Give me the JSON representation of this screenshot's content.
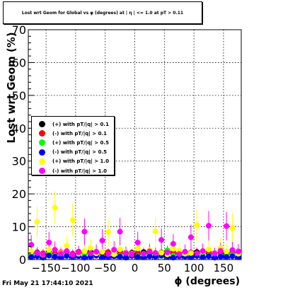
{
  "title": "Lost wrt Geom for Global vs φ (degrees) at | η | <= 1.0 at pT > 0.11",
  "timestamp": "Fri May 21 17:44:10 2021",
  "chart_data": {
    "type": "scatter",
    "title": "Lost wrt Geom for Global vs φ (degrees) at | η | <= 1.0 at pT > 0.11",
    "xlabel": "ϕ (degrees)",
    "ylabel": "Lost wrt Geom (%)",
    "xlim": [
      -180,
      180
    ],
    "ylim": [
      0,
      70
    ],
    "xticks": [
      -150,
      -100,
      -50,
      0,
      50,
      100,
      150
    ],
    "xtick_labels": [
      "−150",
      "−100",
      "−50",
      "0",
      "50",
      "100",
      "150"
    ],
    "yticks": [
      0,
      10,
      20,
      30,
      40,
      50,
      60,
      70
    ],
    "grid": true,
    "legend_position": "middle-left",
    "series": [
      {
        "name": "(+) with pT/|q| > 0.1",
        "color": "#000000",
        "x": [
          -175,
          -165,
          -155,
          -145,
          -135,
          -125,
          -115,
          -105,
          -95,
          -85,
          -75,
          -65,
          -55,
          -45,
          -35,
          -25,
          -15,
          -5,
          5,
          15,
          25,
          35,
          45,
          55,
          65,
          75,
          85,
          95,
          105,
          115,
          125,
          135,
          145,
          155,
          165,
          175
        ],
        "y": [
          2.0,
          2.2,
          1.5,
          2.5,
          1.8,
          2.0,
          2.3,
          1.6,
          1.9,
          2.1,
          2.4,
          1.7,
          2.0,
          2.2,
          1.8,
          2.5,
          1.9,
          2.1,
          1.6,
          2.3,
          2.0,
          1.8,
          2.2,
          2.4,
          1.7,
          2.0,
          2.1,
          1.9,
          2.3,
          2.5,
          1.8,
          2.0,
          2.2,
          1.6,
          2.1,
          2.0
        ],
        "err": [
          0.6,
          0.6,
          0.5,
          0.7,
          0.5,
          0.6,
          0.6,
          0.5,
          0.6,
          0.6,
          0.7,
          0.5,
          0.6,
          0.6,
          0.5,
          0.7,
          0.6,
          0.6,
          0.5,
          0.6,
          0.6,
          0.5,
          0.6,
          0.7,
          0.5,
          0.6,
          0.6,
          0.6,
          0.6,
          0.7,
          0.5,
          0.6,
          0.6,
          0.5,
          0.6,
          0.6
        ]
      },
      {
        "name": "(-) with pT/|q| > 0.1",
        "color": "#ff0000",
        "x": [
          -175,
          -165,
          -155,
          -145,
          -135,
          -125,
          -115,
          -105,
          -95,
          -85,
          -75,
          -65,
          -55,
          -45,
          -35,
          -25,
          -15,
          -5,
          5,
          15,
          25,
          35,
          45,
          55,
          65,
          75,
          85,
          95,
          105,
          115,
          125,
          135,
          145,
          155,
          165,
          175
        ],
        "y": [
          1.8,
          2.1,
          1.9,
          2.3,
          1.6,
          2.2,
          2.0,
          1.8,
          2.4,
          2.0,
          1.7,
          2.1,
          1.9,
          2.3,
          2.0,
          1.8,
          2.2,
          1.9,
          2.1,
          1.7,
          2.4,
          2.0,
          1.8,
          2.1,
          2.3,
          1.9,
          2.0,
          2.2,
          1.8,
          2.0,
          2.3,
          1.9,
          2.1,
          2.0,
          1.8,
          2.2
        ],
        "err": [
          0.5,
          0.6,
          0.6,
          0.6,
          0.5,
          0.6,
          0.6,
          0.5,
          0.7,
          0.6,
          0.5,
          0.6,
          0.6,
          0.6,
          0.6,
          0.5,
          0.6,
          0.6,
          0.6,
          0.5,
          0.7,
          0.6,
          0.5,
          0.6,
          0.6,
          0.6,
          0.6,
          0.6,
          0.5,
          0.6,
          0.6,
          0.6,
          0.6,
          0.6,
          0.5,
          0.6
        ]
      },
      {
        "name": "(+) with pT/|q| > 0.5",
        "color": "#00ff00",
        "x": [
          -175,
          -165,
          -155,
          -145,
          -135,
          -125,
          -115,
          -105,
          -95,
          -85,
          -75,
          -65,
          -55,
          -45,
          -35,
          -25,
          -15,
          -5,
          5,
          15,
          25,
          35,
          45,
          55,
          65,
          75,
          85,
          95,
          105,
          115,
          125,
          135,
          145,
          155,
          165,
          175
        ],
        "y": [
          1.2,
          1.5,
          0.9,
          1.8,
          1.1,
          1.4,
          1.6,
          1.0,
          1.3,
          1.7,
          1.2,
          1.5,
          0.8,
          1.6,
          1.9,
          1.1,
          1.4,
          1.2,
          1.0,
          1.7,
          1.3,
          1.5,
          1.1,
          2.8,
          1.2,
          1.6,
          1.4,
          0.9,
          1.3,
          1.8,
          1.2,
          1.5,
          1.0,
          1.4,
          1.6,
          1.2
        ],
        "err": [
          0.6,
          0.6,
          0.5,
          0.7,
          0.5,
          0.6,
          0.6,
          0.5,
          0.6,
          0.6,
          0.5,
          0.6,
          0.5,
          0.6,
          0.7,
          0.5,
          0.6,
          0.5,
          0.5,
          0.6,
          0.6,
          0.6,
          0.5,
          0.8,
          0.5,
          0.6,
          0.6,
          0.5,
          0.6,
          0.7,
          0.5,
          0.6,
          0.5,
          0.6,
          0.6,
          0.5
        ]
      },
      {
        "name": "(-) with pT/|q| > 0.5",
        "color": "#0000ff",
        "x": [
          -175,
          -165,
          -155,
          -145,
          -135,
          -125,
          -115,
          -105,
          -95,
          -85,
          -75,
          -65,
          -55,
          -45,
          -35,
          -25,
          -15,
          -5,
          5,
          15,
          25,
          35,
          45,
          55,
          65,
          75,
          85,
          95,
          105,
          115,
          125,
          135,
          145,
          155,
          165,
          175
        ],
        "y": [
          0.8,
          1.0,
          0.6,
          1.2,
          0.9,
          0.7,
          1.1,
          0.8,
          1.0,
          0.6,
          0.9,
          1.2,
          0.7,
          0.8,
          1.0,
          0.9,
          0.6,
          1.1,
          0.8,
          0.7,
          1.0,
          0.9,
          1.2,
          0.8,
          0.6,
          1.0,
          0.9,
          0.7,
          1.1,
          0.8,
          1.0,
          0.6,
          0.9,
          0.8,
          1.0,
          0.7
        ],
        "err": [
          0.5,
          0.5,
          0.4,
          0.6,
          0.5,
          0.4,
          0.5,
          0.5,
          0.5,
          0.4,
          0.5,
          0.6,
          0.4,
          0.5,
          0.5,
          0.5,
          0.4,
          0.5,
          0.5,
          0.4,
          0.5,
          0.5,
          0.6,
          0.5,
          0.4,
          0.5,
          0.5,
          0.4,
          0.5,
          0.5,
          0.5,
          0.4,
          0.5,
          0.5,
          0.5,
          0.4
        ]
      },
      {
        "name": "(+) with pT/|q| > 1.0",
        "color": "#ffff00",
        "x": [
          -175,
          -165,
          -155,
          -145,
          -135,
          -125,
          -115,
          -105,
          -95,
          -85,
          -75,
          -65,
          -55,
          -45,
          -35,
          -25,
          -15,
          -5,
          5,
          15,
          25,
          35,
          45,
          55,
          65,
          75,
          85,
          95,
          105,
          115,
          125,
          135,
          145,
          155,
          165,
          175
        ],
        "y": [
          2.5,
          11.5,
          1.5,
          3.0,
          15.8,
          2.0,
          4.2,
          12.0,
          1.8,
          2.6,
          3.5,
          1.9,
          2.4,
          8.4,
          1.6,
          3.1,
          2.2,
          1.7,
          3.4,
          1.8,
          2.9,
          8.6,
          2.1,
          1.6,
          3.3,
          2.7,
          1.8,
          2.0,
          10.5,
          2.4,
          3.1,
          1.9,
          3.6,
          2.5,
          9.6,
          1.8
        ],
        "err": [
          2.0,
          4.5,
          1.8,
          2.5,
          5.0,
          2.0,
          3.0,
          5.0,
          1.8,
          2.5,
          2.8,
          2.0,
          2.4,
          4.0,
          1.8,
          2.6,
          2.2,
          1.8,
          2.8,
          1.8,
          2.6,
          4.2,
          2.1,
          1.7,
          2.8,
          2.6,
          1.8,
          2.0,
          4.8,
          2.4,
          2.8,
          1.9,
          3.0,
          2.4,
          4.5,
          1.8
        ]
      },
      {
        "name": "(-) with pT/|q| > 1.0",
        "color": "#ff00ff",
        "x": [
          -175,
          -165,
          -155,
          -145,
          -135,
          -125,
          -115,
          -105,
          -95,
          -85,
          -75,
          -65,
          -55,
          -45,
          -35,
          -25,
          -15,
          -5,
          5,
          15,
          25,
          35,
          45,
          55,
          65,
          75,
          85,
          95,
          105,
          115,
          125,
          135,
          145,
          155,
          165,
          175
        ],
        "y": [
          4.5,
          2.0,
          1.6,
          5.2,
          3.0,
          1.8,
          2.6,
          1.5,
          2.2,
          8.5,
          1.9,
          2.4,
          5.8,
          1.7,
          3.0,
          8.5,
          2.0,
          1.6,
          5.2,
          1.8,
          2.5,
          1.9,
          6.0,
          2.2,
          4.8,
          1.7,
          2.4,
          6.8,
          1.9,
          2.6,
          10.3,
          1.8,
          2.7,
          10.2,
          2.9,
          2.5
        ],
        "err": [
          3.0,
          1.8,
          1.6,
          3.2,
          2.5,
          1.8,
          2.2,
          1.6,
          2.0,
          4.0,
          1.8,
          2.2,
          3.5,
          1.7,
          2.6,
          4.2,
          1.9,
          1.6,
          3.3,
          1.8,
          2.2,
          1.8,
          3.5,
          2.0,
          3.0,
          1.7,
          2.2,
          3.8,
          1.8,
          2.3,
          4.5,
          1.8,
          2.4,
          4.3,
          2.5,
          2.2
        ]
      }
    ]
  }
}
